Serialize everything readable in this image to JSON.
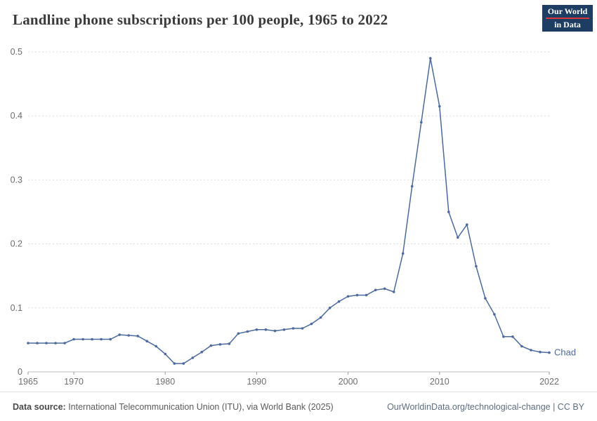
{
  "header": {
    "title": "Landline phone subscriptions per 100 people, 1965 to 2022",
    "logo_line1": "Our World",
    "logo_line2": "in Data"
  },
  "chart_data": {
    "type": "line",
    "title": "Landline phone subscriptions per 100 people, 1965 to 2022",
    "xlabel": "",
    "ylabel": "",
    "ylim": [
      0,
      0.5
    ],
    "yticks": [
      0,
      0.1,
      0.2,
      0.3,
      0.4,
      0.5
    ],
    "xticks": [
      1965,
      1970,
      1980,
      1990,
      2000,
      2010,
      2022
    ],
    "grid": "dashed-horizontal",
    "legend_position": "end-of-line-label",
    "line_color": "#4c6a9c",
    "series": [
      {
        "name": "Chad",
        "x": [
          1965,
          1966,
          1967,
          1968,
          1969,
          1970,
          1971,
          1972,
          1973,
          1974,
          1975,
          1976,
          1977,
          1978,
          1979,
          1980,
          1981,
          1982,
          1983,
          1984,
          1985,
          1986,
          1987,
          1988,
          1989,
          1990,
          1991,
          1992,
          1993,
          1994,
          1995,
          1996,
          1997,
          1998,
          1999,
          2000,
          2001,
          2002,
          2003,
          2004,
          2005,
          2006,
          2007,
          2008,
          2009,
          2010,
          2011,
          2012,
          2013,
          2014,
          2015,
          2016,
          2017,
          2018,
          2019,
          2020,
          2021,
          2022
        ],
        "values": [
          0.045,
          0.045,
          0.045,
          0.045,
          0.045,
          0.051,
          0.051,
          0.051,
          0.051,
          0.051,
          0.058,
          0.057,
          0.056,
          0.048,
          0.04,
          0.028,
          0.013,
          0.013,
          0.022,
          0.031,
          0.041,
          0.043,
          0.044,
          0.06,
          0.063,
          0.066,
          0.066,
          0.064,
          0.066,
          0.068,
          0.068,
          0.075,
          0.085,
          0.1,
          0.11,
          0.118,
          0.12,
          0.12,
          0.128,
          0.13,
          0.125,
          0.185,
          0.29,
          0.39,
          0.49,
          0.415,
          0.25,
          0.21,
          0.23,
          0.165,
          0.115,
          0.09,
          0.055,
          0.055,
          0.04,
          0.034,
          0.031,
          0.03
        ]
      }
    ]
  },
  "footer": {
    "source_label": "Data source:",
    "source_text": " International Telecommunication Union (ITU), via World Bank (2025)",
    "link_text": "OurWorldinData.org/technological-change | CC BY"
  }
}
